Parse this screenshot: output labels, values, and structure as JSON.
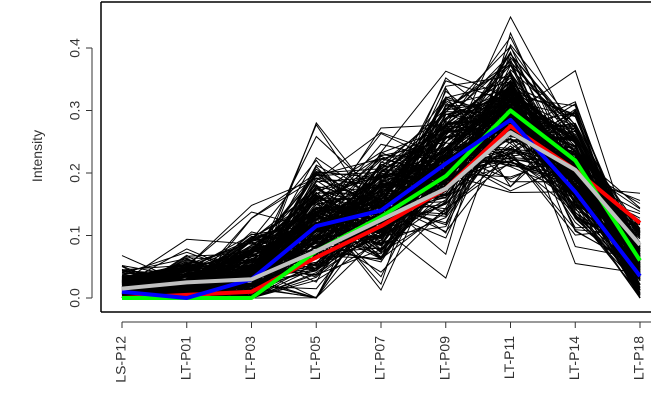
{
  "chart_data": {
    "type": "line",
    "ylabel": "Intensity",
    "xlabel": "",
    "categories": [
      "LS-P12",
      "LT-P01",
      "LT-P03",
      "LT-P05",
      "LT-P07",
      "LT-P09",
      "LT-P11",
      "LT-P14",
      "LT-P18"
    ],
    "ylim": [
      -0.02,
      0.47
    ],
    "yticks": [
      "0.0",
      "0.1",
      "0.2",
      "0.3",
      "0.4"
    ],
    "ytick_values": [
      0.0,
      0.1,
      0.2,
      0.3,
      0.4
    ],
    "grid": false,
    "legend": "none",
    "background_profiles": {
      "color": "#000000",
      "count": 220,
      "median": [
        0.02,
        0.025,
        0.04,
        0.11,
        0.15,
        0.22,
        0.3,
        0.2,
        0.06
      ],
      "spread": [
        0.012,
        0.02,
        0.03,
        0.05,
        0.05,
        0.05,
        0.05,
        0.05,
        0.035
      ]
    },
    "series": [
      {
        "color": "#ff0000",
        "values": [
          0.0,
          0.005,
          0.01,
          0.065,
          0.115,
          0.175,
          0.275,
          0.205,
          0.12
        ]
      },
      {
        "color": "#00ff00",
        "values": [
          0.0,
          0.0,
          0.0,
          0.075,
          0.13,
          0.195,
          0.3,
          0.22,
          0.06
        ]
      },
      {
        "color": "#0000ff",
        "values": [
          0.01,
          0.0,
          0.03,
          0.115,
          0.14,
          0.215,
          0.285,
          0.17,
          0.035
        ]
      },
      {
        "color": "#c0c0c0",
        "values": [
          0.015,
          0.025,
          0.03,
          0.075,
          0.125,
          0.175,
          0.265,
          0.205,
          0.085
        ]
      }
    ]
  }
}
